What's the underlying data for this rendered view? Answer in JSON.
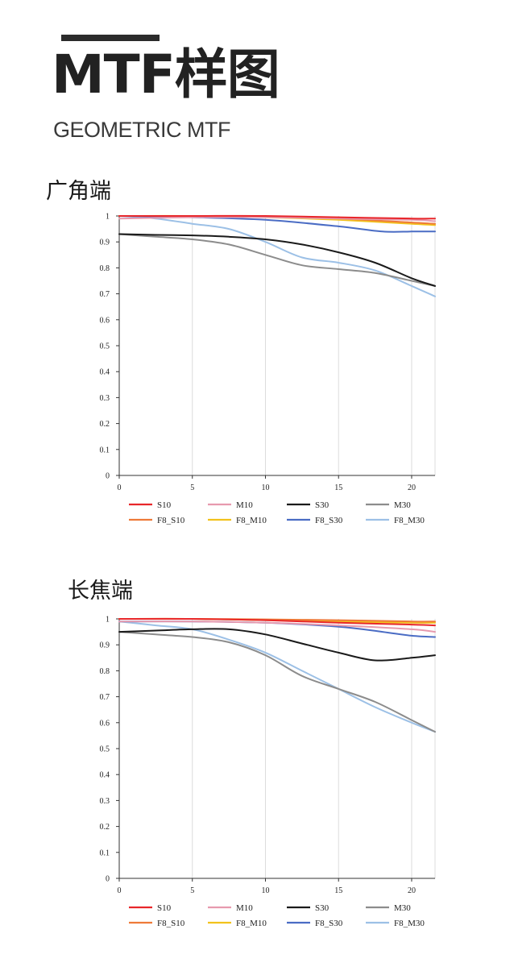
{
  "header": {
    "title": "MTF样图",
    "subtitle": "GEOMETRIC MTF"
  },
  "colors": {
    "S10": "#e8262a",
    "M10": "#e79aae",
    "S30": "#1a1a1a",
    "M30": "#8c8c8c",
    "F8_S10": "#ee7a38",
    "F8_M10": "#f2c21c",
    "F8_S30": "#4a6cc4",
    "F8_M30": "#9cc0e6"
  },
  "chart_data": [
    {
      "type": "line",
      "title": "广角端",
      "xlim": [
        0,
        21.6
      ],
      "ylim": [
        0,
        1
      ],
      "x_ticks": [
        "0",
        "5",
        "10",
        "15",
        "20"
      ],
      "y_ticks": [
        "0",
        "0.1",
        "0.2",
        "0.3",
        "0.4",
        "0.5",
        "0.6",
        "0.7",
        "0.8",
        "0.9",
        "1"
      ],
      "grid": "vertical",
      "legend": "bottom",
      "series": [
        {
          "name": "S10",
          "x": [
            0,
            5,
            10,
            15,
            20,
            21.6
          ],
          "values": [
            1.0,
            1.0,
            1.0,
            0.995,
            0.99,
            0.99
          ]
        },
        {
          "name": "M10",
          "x": [
            0,
            5,
            10,
            15,
            20,
            21.6
          ],
          "values": [
            0.99,
            0.995,
            0.995,
            0.99,
            0.985,
            0.98
          ]
        },
        {
          "name": "S30",
          "x": [
            0,
            2.5,
            5,
            7.5,
            10,
            12.5,
            15,
            17.5,
            20,
            21.6
          ],
          "values": [
            0.93,
            0.927,
            0.925,
            0.92,
            0.91,
            0.89,
            0.86,
            0.82,
            0.76,
            0.73
          ]
        },
        {
          "name": "M30",
          "x": [
            0,
            2.5,
            5,
            7.5,
            10,
            12.5,
            15,
            17.5,
            20,
            21.6
          ],
          "values": [
            0.93,
            0.92,
            0.91,
            0.89,
            0.85,
            0.81,
            0.795,
            0.78,
            0.75,
            0.73
          ]
        },
        {
          "name": "F8_S10",
          "x": [
            0,
            5,
            10,
            15,
            20,
            21.6
          ],
          "values": [
            1.0,
            1.0,
            0.998,
            0.99,
            0.975,
            0.97
          ]
        },
        {
          "name": "F8_M10",
          "x": [
            0,
            5,
            10,
            15,
            20,
            21.6
          ],
          "values": [
            1.0,
            1.0,
            0.995,
            0.985,
            0.97,
            0.965
          ]
        },
        {
          "name": "F8_S30",
          "x": [
            0,
            5,
            10,
            15,
            18,
            20,
            21.6
          ],
          "values": [
            1.0,
            0.995,
            0.985,
            0.96,
            0.94,
            0.94,
            0.94
          ]
        },
        {
          "name": "F8_M30",
          "x": [
            0,
            2.5,
            5,
            7.5,
            10,
            12.5,
            15,
            17.5,
            20,
            21.6
          ],
          "values": [
            1.0,
            0.99,
            0.97,
            0.95,
            0.9,
            0.84,
            0.82,
            0.79,
            0.73,
            0.69
          ]
        }
      ]
    },
    {
      "type": "line",
      "title": "长焦端",
      "xlim": [
        0,
        21.6
      ],
      "ylim": [
        0,
        1
      ],
      "x_ticks": [
        "0",
        "5",
        "10",
        "15",
        "20"
      ],
      "y_ticks": [
        "0",
        "0.1",
        "0.2",
        "0.3",
        "0.4",
        "0.5",
        "0.6",
        "0.7",
        "0.8",
        "0.9",
        "1"
      ],
      "grid": "vertical",
      "legend": "bottom",
      "series": [
        {
          "name": "S10",
          "x": [
            0,
            5,
            10,
            15,
            20,
            21.6
          ],
          "values": [
            1.0,
            1.0,
            0.995,
            0.985,
            0.978,
            0.975
          ]
        },
        {
          "name": "M10",
          "x": [
            0,
            5,
            10,
            15,
            20,
            21.6
          ],
          "values": [
            0.99,
            0.99,
            0.985,
            0.975,
            0.96,
            0.95
          ]
        },
        {
          "name": "S30",
          "x": [
            0,
            2.5,
            5,
            7.5,
            10,
            12.5,
            15,
            17.5,
            20,
            21.6
          ],
          "values": [
            0.95,
            0.955,
            0.96,
            0.96,
            0.94,
            0.905,
            0.87,
            0.84,
            0.85,
            0.86
          ]
        },
        {
          "name": "M30",
          "x": [
            0,
            2.5,
            5,
            7.5,
            10,
            12.5,
            15,
            17.5,
            20,
            21.6
          ],
          "values": [
            0.95,
            0.94,
            0.93,
            0.91,
            0.86,
            0.78,
            0.73,
            0.68,
            0.61,
            0.565
          ]
        },
        {
          "name": "F8_S10",
          "x": [
            0,
            5,
            10,
            15,
            20,
            21.6
          ],
          "values": [
            1.0,
            1.0,
            0.998,
            0.995,
            0.99,
            0.99
          ]
        },
        {
          "name": "F8_M10",
          "x": [
            0,
            5,
            10,
            15,
            20,
            21.6
          ],
          "values": [
            1.0,
            1.0,
            0.995,
            0.99,
            0.985,
            0.985
          ]
        },
        {
          "name": "F8_S30",
          "x": [
            0,
            5,
            10,
            15,
            18,
            20,
            21.6
          ],
          "values": [
            0.99,
            0.99,
            0.985,
            0.97,
            0.95,
            0.935,
            0.93
          ]
        },
        {
          "name": "F8_M30",
          "x": [
            0,
            2.5,
            5,
            7.5,
            10,
            12.5,
            15,
            17.5,
            20,
            21.6
          ],
          "values": [
            0.99,
            0.975,
            0.96,
            0.92,
            0.87,
            0.8,
            0.73,
            0.66,
            0.6,
            0.565
          ]
        }
      ]
    }
  ]
}
